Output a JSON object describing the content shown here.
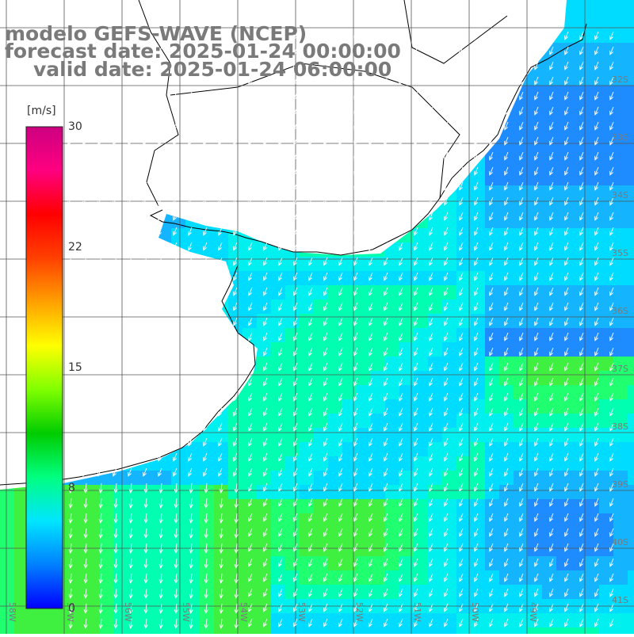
{
  "title": {
    "line1": "modelo GEFS-WAVE (NCEP)",
    "line2": "forecast date: 2025-01-24 00:00:00",
    "line3": "valid date: 2025-01-24 06:00:00"
  },
  "colorbar": {
    "unit": "[m/s]",
    "ticks": [
      "30",
      "22",
      "15",
      "8",
      "0"
    ],
    "tick_values": [
      30,
      22,
      15,
      8,
      0
    ],
    "colors": [
      "#0000ff",
      "#0080ff",
      "#00e6ff",
      "#00ff80",
      "#00cc00",
      "#80ff00",
      "#ffff00",
      "#ffa000",
      "#ff4000",
      "#ff0000",
      "#ff0080",
      "#cc0080"
    ]
  },
  "lat_labels": [
    "32S",
    "33S",
    "34S",
    "35S",
    "36S",
    "37S",
    "38S",
    "39S",
    "40S",
    "41S"
  ],
  "lon_labels": [
    "58W",
    "57W",
    "56W",
    "55W",
    "54W",
    "53W",
    "52W",
    "51W",
    "50W",
    "49W"
  ],
  "field": {
    "variable": "wind speed",
    "units": "m/s",
    "dominant_direction": "from NE (arrows pointing SW)"
  }
}
